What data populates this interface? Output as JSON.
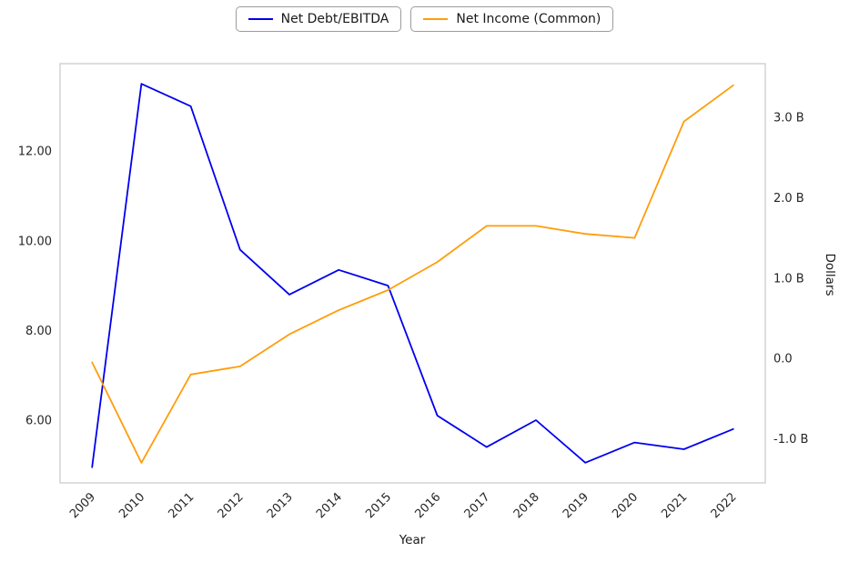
{
  "chart_data": {
    "type": "line",
    "title": "",
    "xlabel": "Year",
    "grid": false,
    "legend_position": "top-center",
    "x": [
      2009,
      2010,
      2011,
      2012,
      2013,
      2014,
      2015,
      2016,
      2017,
      2018,
      2019,
      2020,
      2021,
      2022
    ],
    "x_tick_labels": [
      "2009",
      "2010",
      "2011",
      "2012",
      "2013",
      "2014",
      "2015",
      "2016",
      "2017",
      "2018",
      "2019",
      "2020",
      "2021",
      "2022"
    ],
    "xlim": [
      2008.35,
      2022.65
    ],
    "series": [
      {
        "name": "Net Debt/EBITDA",
        "axis": "left",
        "color": "#0000ee",
        "values": [
          4.95,
          13.5,
          13.0,
          9.8,
          8.8,
          9.35,
          9.0,
          6.1,
          5.4,
          6.0,
          5.05,
          5.5,
          5.35,
          5.8
        ]
      },
      {
        "name": "Net Income (Common)",
        "axis": "right",
        "color": "#ff9d0a",
        "values": [
          -0.05,
          -1.3,
          -0.2,
          -0.1,
          0.3,
          0.6,
          0.85,
          1.2,
          1.65,
          1.65,
          1.55,
          1.5,
          2.95,
          3.4
        ]
      }
    ],
    "left_axis": {
      "label": "",
      "ticks": [
        6,
        8,
        10,
        12
      ],
      "tick_labels": [
        "6.00",
        "8.00",
        "10.00",
        "12.00"
      ],
      "ylim": [
        4.6,
        13.95
      ],
      "units": "ratio"
    },
    "right_axis": {
      "label": "Dollars",
      "ticks": [
        -1,
        0,
        1,
        2,
        3
      ],
      "tick_labels": [
        "-1.0 B",
        "0.0",
        "1.0 B",
        "2.0 B",
        "3.0 B"
      ],
      "ylim": [
        -1.55,
        3.67
      ],
      "units": "billions of dollars"
    }
  },
  "figure": {
    "background_color": "#ffffff",
    "border_color": "#cccccc",
    "tick_text_color": "#262626"
  }
}
